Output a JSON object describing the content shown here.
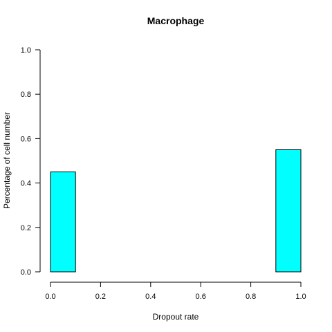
{
  "chart_data": {
    "type": "bar",
    "title": "Macrophage",
    "xlabel": "Dropout rate",
    "ylabel": "Percentage of cell number",
    "xlim": [
      0,
      1
    ],
    "ylim": [
      0,
      1
    ],
    "x_ticks": [
      "0.0",
      "0.2",
      "0.4",
      "0.6",
      "0.8",
      "1.0"
    ],
    "y_ticks": [
      "0.0",
      "0.2",
      "0.4",
      "0.6",
      "0.8",
      "1.0"
    ],
    "bins": [
      {
        "x0": 0.0,
        "x1": 0.1,
        "value": 0.45
      },
      {
        "x0": 0.1,
        "x1": 0.2,
        "value": 0.0
      },
      {
        "x0": 0.2,
        "x1": 0.3,
        "value": 0.0
      },
      {
        "x0": 0.3,
        "x1": 0.4,
        "value": 0.0
      },
      {
        "x0": 0.4,
        "x1": 0.5,
        "value": 0.0
      },
      {
        "x0": 0.5,
        "x1": 0.6,
        "value": 0.0
      },
      {
        "x0": 0.6,
        "x1": 0.7,
        "value": 0.0
      },
      {
        "x0": 0.7,
        "x1": 0.8,
        "value": 0.0
      },
      {
        "x0": 0.8,
        "x1": 0.9,
        "value": 0.0
      },
      {
        "x0": 0.9,
        "x1": 1.0,
        "value": 0.55
      }
    ],
    "bar_color": "#00FFFF",
    "grid": false,
    "legend": "none"
  }
}
